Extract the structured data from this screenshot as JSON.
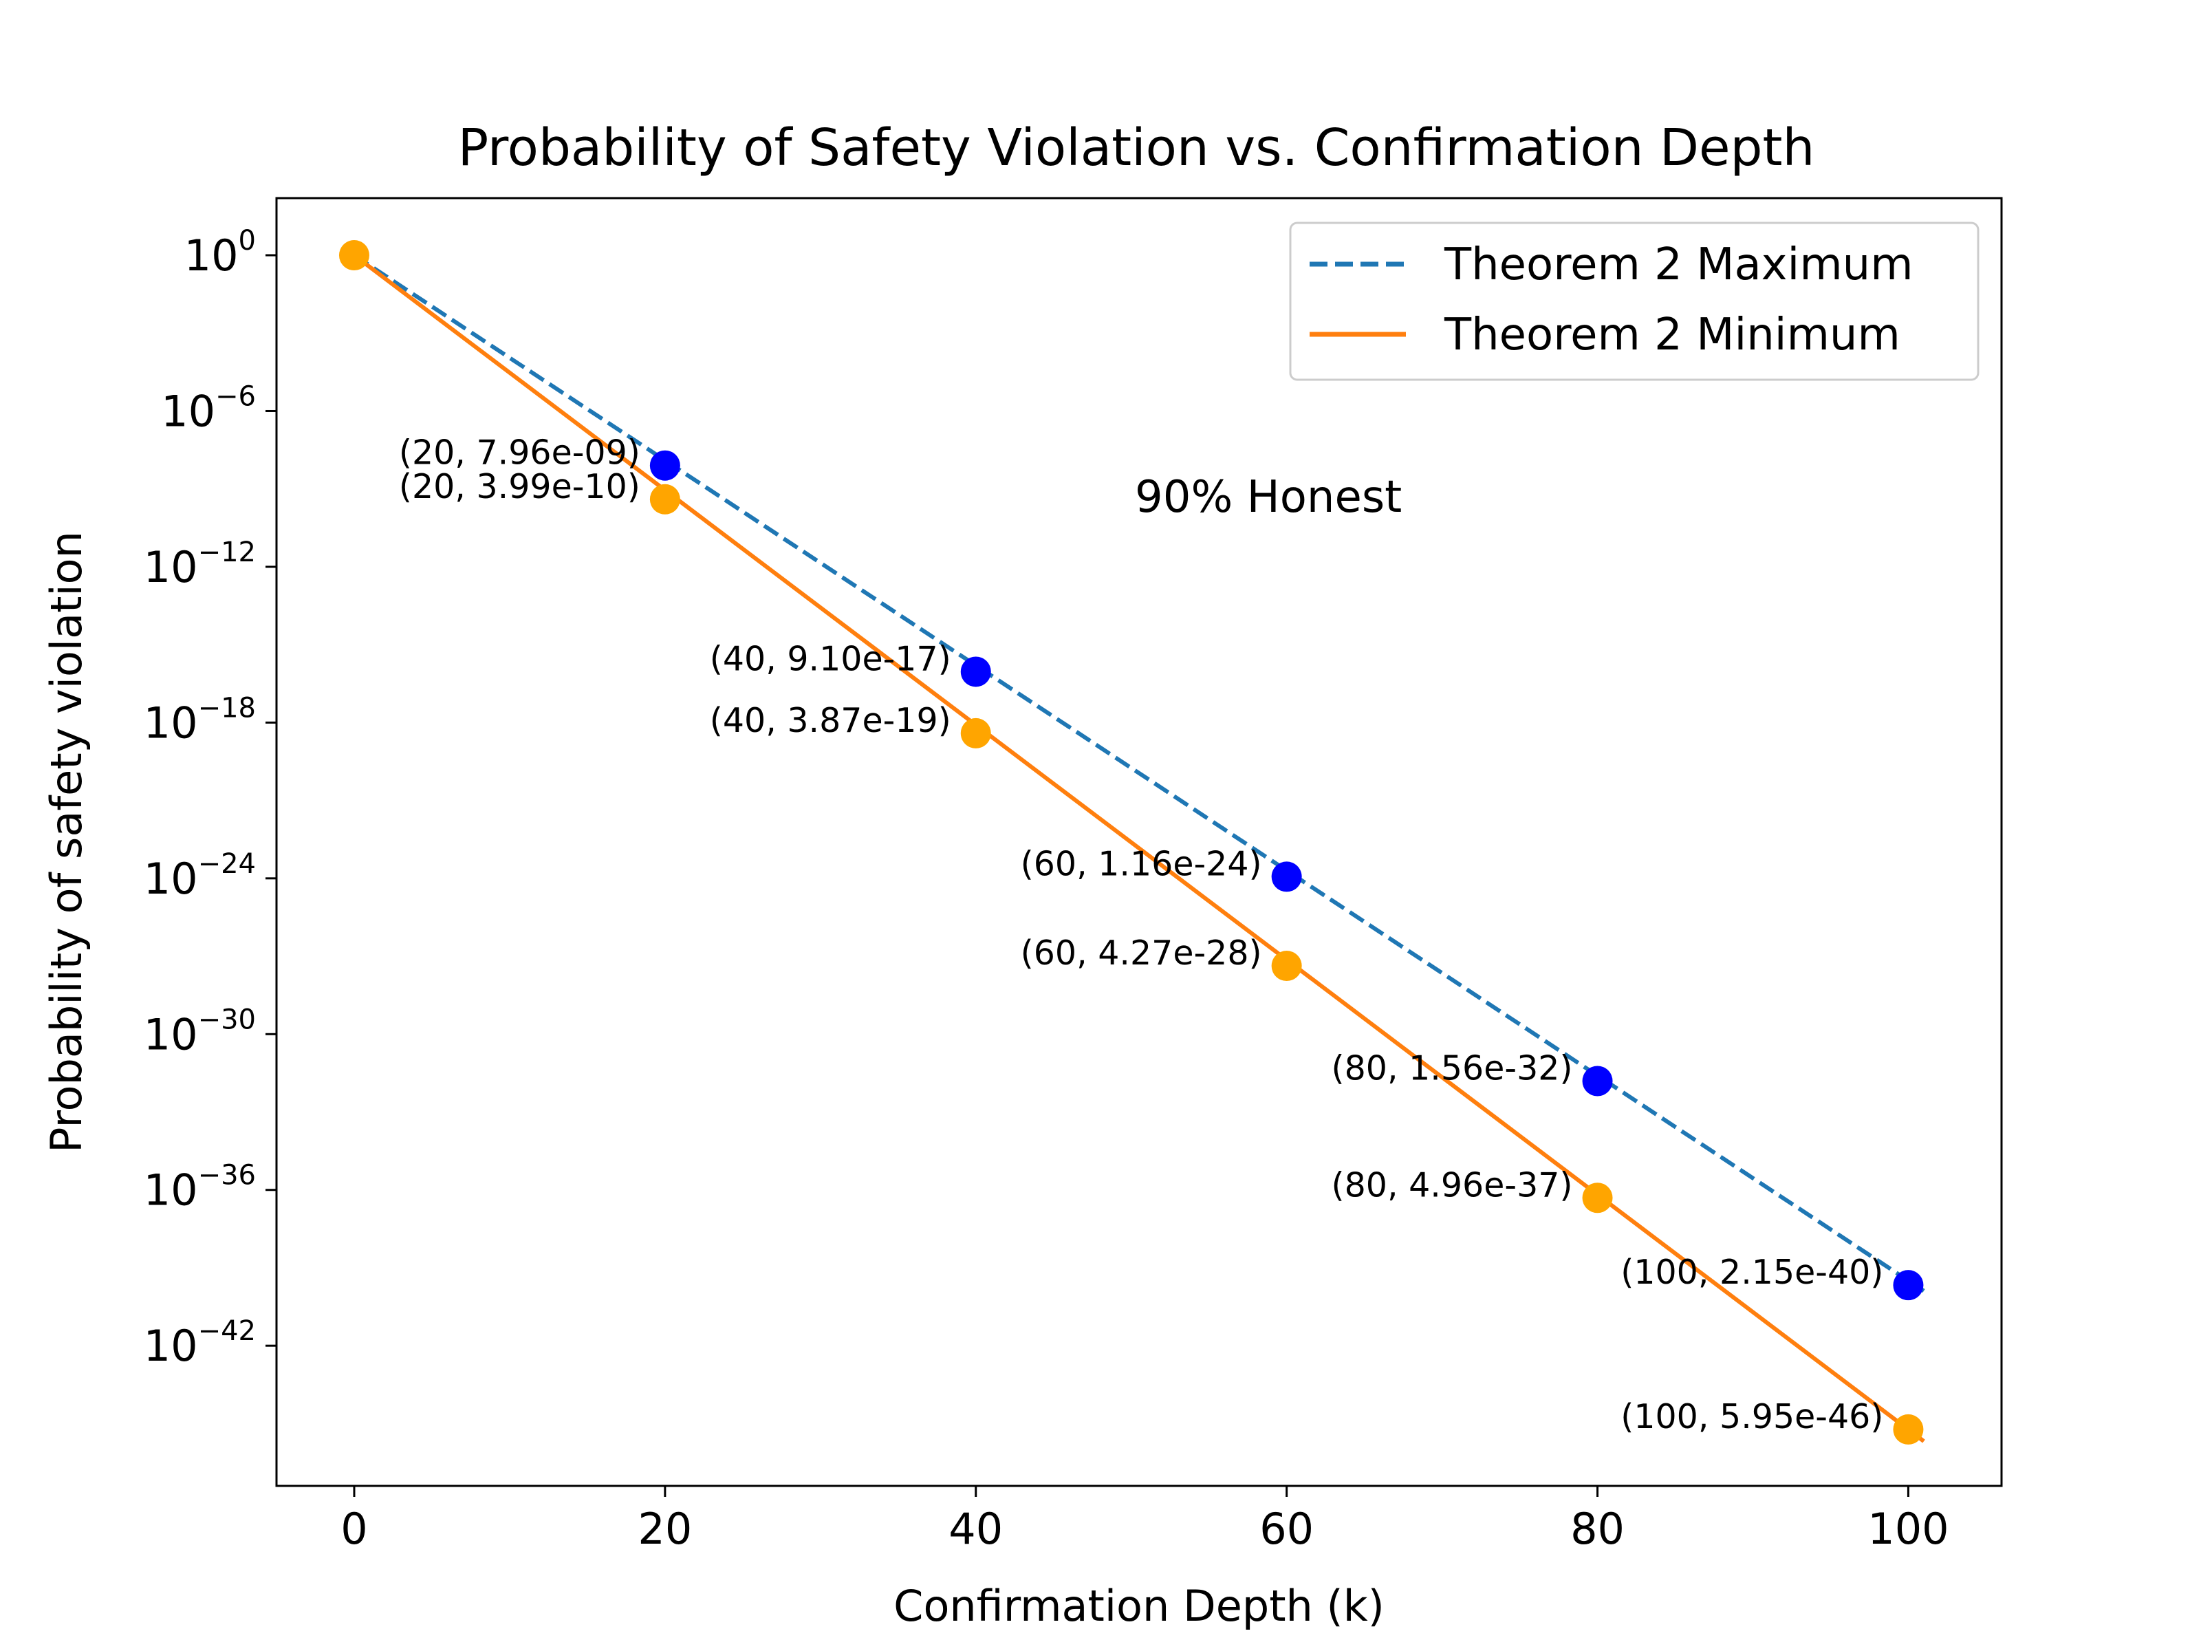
{
  "chart_data": {
    "type": "line",
    "title": "Probability of Safety Violation vs. Confirmation Depth",
    "xlabel": "Confirmation Depth (k)",
    "ylabel": "Probability of safety violation",
    "xlim": [
      -5,
      106
    ],
    "ylim_log10": [
      -47.4,
      2.2
    ],
    "yscale": "log",
    "grid": false,
    "legend_position": "top-right",
    "annotation": "90% Honest",
    "x_ticks": [
      0,
      20,
      40,
      60,
      80,
      100
    ],
    "x_tick_labels": [
      "0",
      "20",
      "40",
      "60",
      "80",
      "100"
    ],
    "y_ticks_exp": [
      0,
      -6,
      -12,
      -18,
      -24,
      -30,
      -36,
      -42
    ],
    "y_tick_base": "10",
    "y_tick_exponents": [
      "0",
      "−6",
      "−12",
      "−18",
      "−24",
      "−30",
      "−36",
      "−42"
    ],
    "series": [
      {
        "name": "Theorem 2 Maximum",
        "line_color": "#1f77b4",
        "marker_color": "#0000ff",
        "line_style": "dashed",
        "line_x": [
          0,
          101
        ],
        "line_log10": [
          0,
          -39.89
        ],
        "points": [
          {
            "x": 20,
            "log10y": -8.099,
            "label": "(20, 7.96e-09)"
          },
          {
            "x": 40,
            "log10y": -16.041,
            "label": "(40, 9.10e-17)"
          },
          {
            "x": 60,
            "log10y": -23.936,
            "label": "(60, 1.16e-24)"
          },
          {
            "x": 80,
            "log10y": -31.807,
            "label": "(80, 1.56e-32)"
          },
          {
            "x": 100,
            "log10y": -39.668,
            "label": "(100, 2.15e-40)"
          }
        ]
      },
      {
        "name": "Theorem 2 Minimum",
        "line_color": "#ff7f0e",
        "marker_color": "#ffa500",
        "line_style": "solid",
        "line_x": [
          0,
          101
        ],
        "line_log10": [
          0,
          -45.68
        ],
        "points": [
          {
            "x": 0,
            "log10y": 0,
            "label": ""
          },
          {
            "x": 20,
            "log10y": -9.399,
            "label": "(20, 3.99e-10)"
          },
          {
            "x": 40,
            "log10y": -18.412,
            "label": "(40, 3.87e-19)"
          },
          {
            "x": 60,
            "log10y": -27.37,
            "label": "(60, 4.27e-28)"
          },
          {
            "x": 80,
            "log10y": -36.305,
            "label": "(80, 4.96e-37)"
          },
          {
            "x": 100,
            "log10y": -45.225,
            "label": "(100, 5.95e-46)"
          }
        ]
      }
    ]
  }
}
